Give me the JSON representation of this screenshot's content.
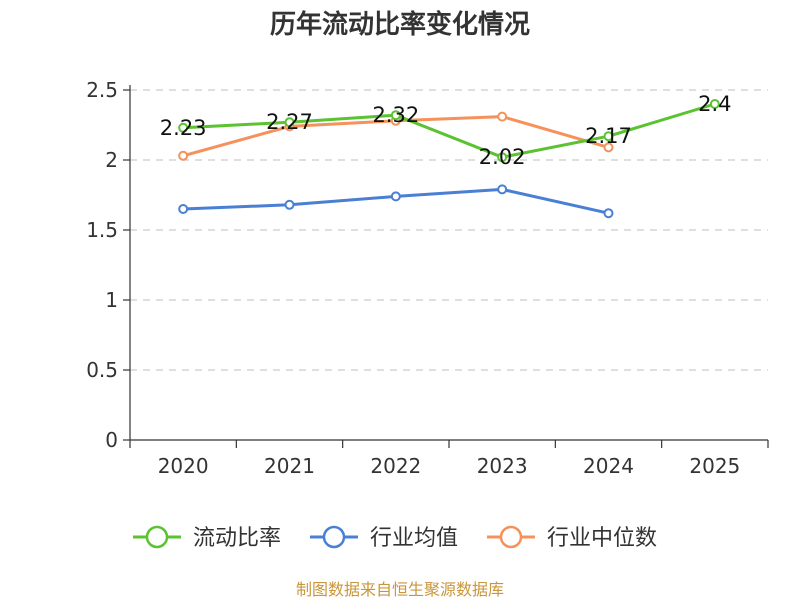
{
  "chart_data": {
    "type": "line",
    "title": "历年流动比率变化情况",
    "categories": [
      "2020",
      "2021",
      "2022",
      "2023",
      "2024",
      "2025"
    ],
    "ylim": [
      0,
      2.5
    ],
    "yticks": [
      "0",
      "0.5",
      "1",
      "1.5",
      "2",
      "2.5"
    ],
    "yticks_values": [
      0,
      0.5,
      1,
      1.5,
      2,
      2.5
    ],
    "grid": true,
    "legend_position": "bottom",
    "series": [
      {
        "name": "流动比率",
        "color": "#5bc230",
        "values": [
          2.23,
          2.27,
          2.32,
          2.02,
          2.17,
          2.4
        ],
        "labels": [
          "2.23",
          "2.27",
          "2.32",
          "2.02",
          "2.17",
          "2.4"
        ]
      },
      {
        "name": "行业均值",
        "color": "#4a7fd6",
        "values": [
          1.65,
          1.68,
          1.74,
          1.79,
          1.62,
          null
        ]
      },
      {
        "name": "行业中位数",
        "color": "#f5915a",
        "values": [
          2.03,
          2.24,
          2.28,
          2.31,
          2.09,
          null
        ]
      }
    ],
    "source": "制图数据来自恒生聚源数据库",
    "source_color": "#c8963c"
  }
}
